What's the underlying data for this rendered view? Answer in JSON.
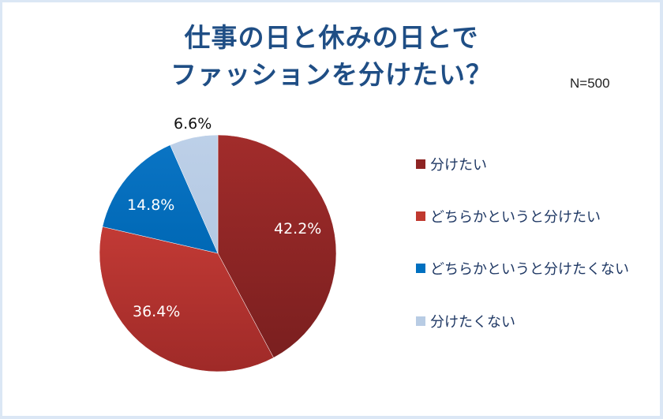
{
  "title": {
    "line1": "仕事の日と休みの日とで",
    "line2": "ファッションを分けたい？"
  },
  "sample_size": "N=500",
  "chart_data": {
    "type": "pie",
    "title": "仕事の日と休みの日とでファッションを分けたい？",
    "subtitle": "N=500",
    "categories": [
      "分けたい",
      "どちらかというと分けたい",
      "どちらかというと分けたくない",
      "分けたくない"
    ],
    "values": [
      42.2,
      36.4,
      14.8,
      6.6
    ],
    "unit": "%",
    "colors": [
      "#8e2423",
      "#b7312f",
      "#0070c0",
      "#b8cce4"
    ],
    "start_angle": "12 o'clock",
    "direction": "clockwise",
    "legend_position": "right",
    "data_labels": [
      "42.2%",
      "36.4%",
      "14.8%",
      "6.6%"
    ]
  },
  "legend": {
    "items": [
      {
        "label": "分けたい",
        "color": "#8e2423"
      },
      {
        "label": "どちらかというと分けたい",
        "color": "#c0392f"
      },
      {
        "label": "どちらかというと分けたくない",
        "color": "#0070c0"
      },
      {
        "label": "分けたくない",
        "color": "#b8cce4"
      }
    ]
  },
  "labels": {
    "s0": "42.2%",
    "s1": "36.4%",
    "s2": "14.8%",
    "s3": "6.6%"
  }
}
